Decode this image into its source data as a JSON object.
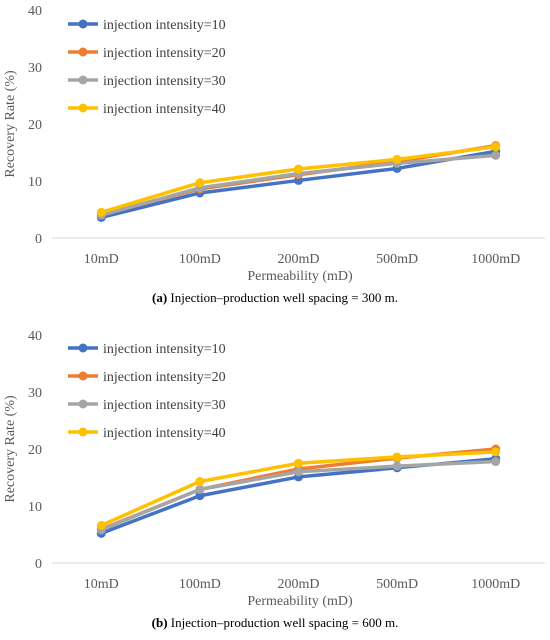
{
  "chart_data": [
    {
      "type": "line",
      "categories": [
        "10mD",
        "100mD",
        "200mD",
        "500mD",
        "1000mD"
      ],
      "xlabel": "Permeability (mD)",
      "ylabel": "Recovery Rate (%)",
      "ylim": [
        0,
        40
      ],
      "yticks": [
        "0",
        "10",
        "20",
        "30",
        "40"
      ],
      "grid": false,
      "legend_position": "top-left",
      "caption_label": "(a)",
      "caption_text": " Injection–production well spacing = 300 m.",
      "series": [
        {
          "name": "injection intensity=10",
          "color": "#4472C4",
          "values": [
            3.6,
            7.9,
            10.1,
            12.2,
            15.2
          ]
        },
        {
          "name": "injection intensity=20",
          "color": "#ED7D31",
          "values": [
            4.1,
            8.6,
            11.1,
            13.4,
            16.2
          ]
        },
        {
          "name": "injection intensity=30",
          "color": "#A5A5A5",
          "values": [
            4.0,
            8.8,
            11.3,
            13.1,
            14.5
          ]
        },
        {
          "name": "injection intensity=40",
          "color": "#FFC000",
          "values": [
            4.5,
            9.7,
            12.1,
            13.8,
            16.0
          ]
        }
      ]
    },
    {
      "type": "line",
      "categories": [
        "10mD",
        "100mD",
        "200mD",
        "500mD",
        "1000mD"
      ],
      "xlabel": "Permeability (mD)",
      "ylabel": "Recovery Rate (%)",
      "ylim": [
        0,
        40
      ],
      "yticks": [
        "0",
        "10",
        "20",
        "30",
        "40"
      ],
      "grid": false,
      "legend_position": "top-left",
      "caption_label": "(b)",
      "caption_text": " Injection–production well spacing = 600 m.",
      "series": [
        {
          "name": "injection intensity=10",
          "color": "#4472C4",
          "values": [
            5.2,
            11.8,
            15.1,
            16.7,
            18.3
          ]
        },
        {
          "name": "injection intensity=20",
          "color": "#ED7D31",
          "values": [
            5.9,
            12.9,
            16.5,
            18.4,
            20.0
          ]
        },
        {
          "name": "injection intensity=30",
          "color": "#A5A5A5",
          "values": [
            5.8,
            12.9,
            16.0,
            17.0,
            17.8
          ]
        },
        {
          "name": "injection intensity=40",
          "color": "#FFC000",
          "values": [
            6.6,
            14.3,
            17.5,
            18.6,
            19.5
          ]
        }
      ]
    }
  ]
}
